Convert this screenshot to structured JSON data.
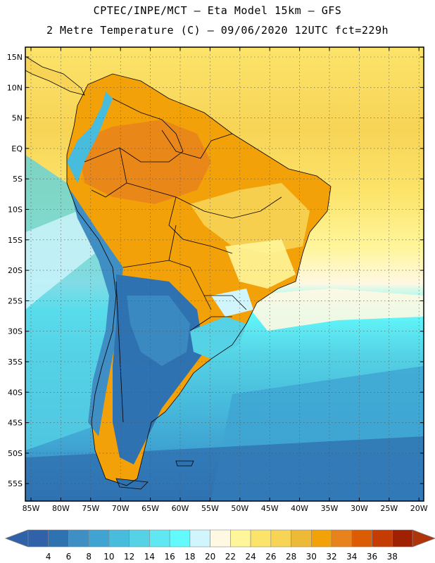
{
  "header": {
    "line1": "CPTEC/INPE/MCT –  Eta Model 15km – GFS",
    "line2": "2 Metre Temperature (C) – 09/06/2020 12UTC fct=229h"
  },
  "map": {
    "lat_labels": [
      "15N",
      "10N",
      "5N",
      "EQ",
      "5S",
      "10S",
      "15S",
      "20S",
      "25S",
      "30S",
      "35S",
      "40S",
      "45S",
      "50S",
      "55S"
    ],
    "lon_labels": [
      "85W",
      "80W",
      "75W",
      "70W",
      "65W",
      "60W",
      "55W",
      "50W",
      "45W",
      "40W",
      "35W",
      "30W",
      "25W",
      "20W"
    ]
  },
  "colorbar": {
    "ticks": [
      "4",
      "6",
      "8",
      "10",
      "12",
      "14",
      "16",
      "18",
      "20",
      "22",
      "24",
      "26",
      "28",
      "30",
      "32",
      "34",
      "36",
      "38"
    ],
    "colors": [
      "#2f62a8",
      "#2f72b2",
      "#3f8ec4",
      "#3fa4d2",
      "#48bcdc",
      "#55d2e5",
      "#5fe8f2",
      "#62fafc",
      "#d0f5fc",
      "#fff8e2",
      "#fff59a",
      "#fce46a",
      "#f7d456",
      "#edba38",
      "#f3a108",
      "#e8821c",
      "#dc5c04",
      "#c43c02",
      "#a02002"
    ],
    "left_arrow_color": "#2f62a8",
    "right_arrow_color": "#b0340a"
  }
}
